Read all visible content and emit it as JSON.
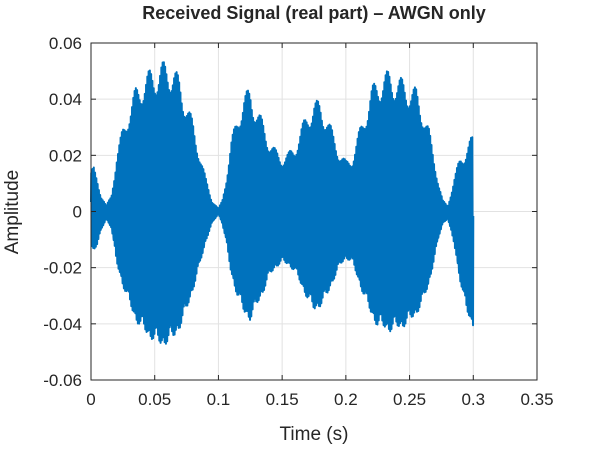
{
  "chart_data": {
    "type": "line",
    "title": "Received Signal (real part) – AWGN only",
    "xlabel": "Time (s)",
    "ylabel": "Amplitude",
    "xlim": [
      0,
      0.35
    ],
    "ylim": [
      -0.06,
      0.06
    ],
    "xticks": [
      0,
      0.05,
      0.1,
      0.15,
      0.2,
      0.25,
      0.3,
      0.35
    ],
    "xtick_labels": [
      "0",
      "0.05",
      "0.1",
      "0.15",
      "0.2",
      "0.25",
      "0.3",
      "0.35"
    ],
    "yticks": [
      -0.06,
      -0.04,
      -0.02,
      0,
      0.02,
      0.04,
      0.06
    ],
    "ytick_labels": [
      "-0.06",
      "-0.04",
      "-0.02",
      "0",
      "0.02",
      "0.04",
      "0.06"
    ],
    "grid": true,
    "box": true,
    "line_color": "#0072BD",
    "series": [
      {
        "envelope_x": [
          0,
          0.002,
          0.005,
          0.008,
          0.012,
          0.016,
          0.02,
          0.025,
          0.03,
          0.035,
          0.04,
          0.045,
          0.05,
          0.055,
          0.06,
          0.065,
          0.07,
          0.075,
          0.08,
          0.085,
          0.09,
          0.095,
          0.1,
          0.103,
          0.106,
          0.11,
          0.115,
          0.12,
          0.125,
          0.13,
          0.135,
          0.14,
          0.145,
          0.15,
          0.155,
          0.16,
          0.165,
          0.17,
          0.175,
          0.18,
          0.185,
          0.19,
          0.195,
          0.2,
          0.205,
          0.21,
          0.215,
          0.22,
          0.225,
          0.23,
          0.235,
          0.24,
          0.245,
          0.25,
          0.255,
          0.26,
          0.265,
          0.27,
          0.273,
          0.276,
          0.28,
          0.285,
          0.29,
          0.295,
          0.3
        ],
        "envelope_max": [
          0.014,
          0.016,
          0.012,
          0.006,
          0.002,
          0.006,
          0.02,
          0.03,
          0.038,
          0.044,
          0.048,
          0.05,
          0.052,
          0.053,
          0.054,
          0.052,
          0.047,
          0.04,
          0.032,
          0.022,
          0.012,
          0.004,
          0.001,
          0.004,
          0.012,
          0.025,
          0.035,
          0.042,
          0.044,
          0.038,
          0.032,
          0.026,
          0.022,
          0.02,
          0.021,
          0.024,
          0.03,
          0.036,
          0.04,
          0.039,
          0.035,
          0.028,
          0.022,
          0.018,
          0.02,
          0.028,
          0.036,
          0.044,
          0.048,
          0.05,
          0.05,
          0.049,
          0.047,
          0.046,
          0.044,
          0.038,
          0.03,
          0.018,
          0.01,
          0.004,
          0.002,
          0.012,
          0.02,
          0.025,
          0.027
        ],
        "envelope_min": [
          -0.015,
          -0.017,
          -0.014,
          -0.008,
          -0.003,
          -0.007,
          -0.022,
          -0.032,
          -0.04,
          -0.047,
          -0.051,
          -0.054,
          -0.056,
          -0.058,
          -0.057,
          -0.055,
          -0.05,
          -0.043,
          -0.034,
          -0.024,
          -0.013,
          -0.005,
          -0.001,
          -0.005,
          -0.013,
          -0.027,
          -0.037,
          -0.044,
          -0.047,
          -0.041,
          -0.035,
          -0.028,
          -0.024,
          -0.022,
          -0.023,
          -0.026,
          -0.032,
          -0.038,
          -0.043,
          -0.041,
          -0.037,
          -0.03,
          -0.024,
          -0.02,
          -0.022,
          -0.03,
          -0.038,
          -0.045,
          -0.05,
          -0.051,
          -0.052,
          -0.051,
          -0.05,
          -0.048,
          -0.045,
          -0.04,
          -0.032,
          -0.019,
          -0.011,
          -0.005,
          -0.003,
          -0.014,
          -0.03,
          -0.042,
          -0.048
        ],
        "oscillations_per_second": 1000
      }
    ]
  }
}
